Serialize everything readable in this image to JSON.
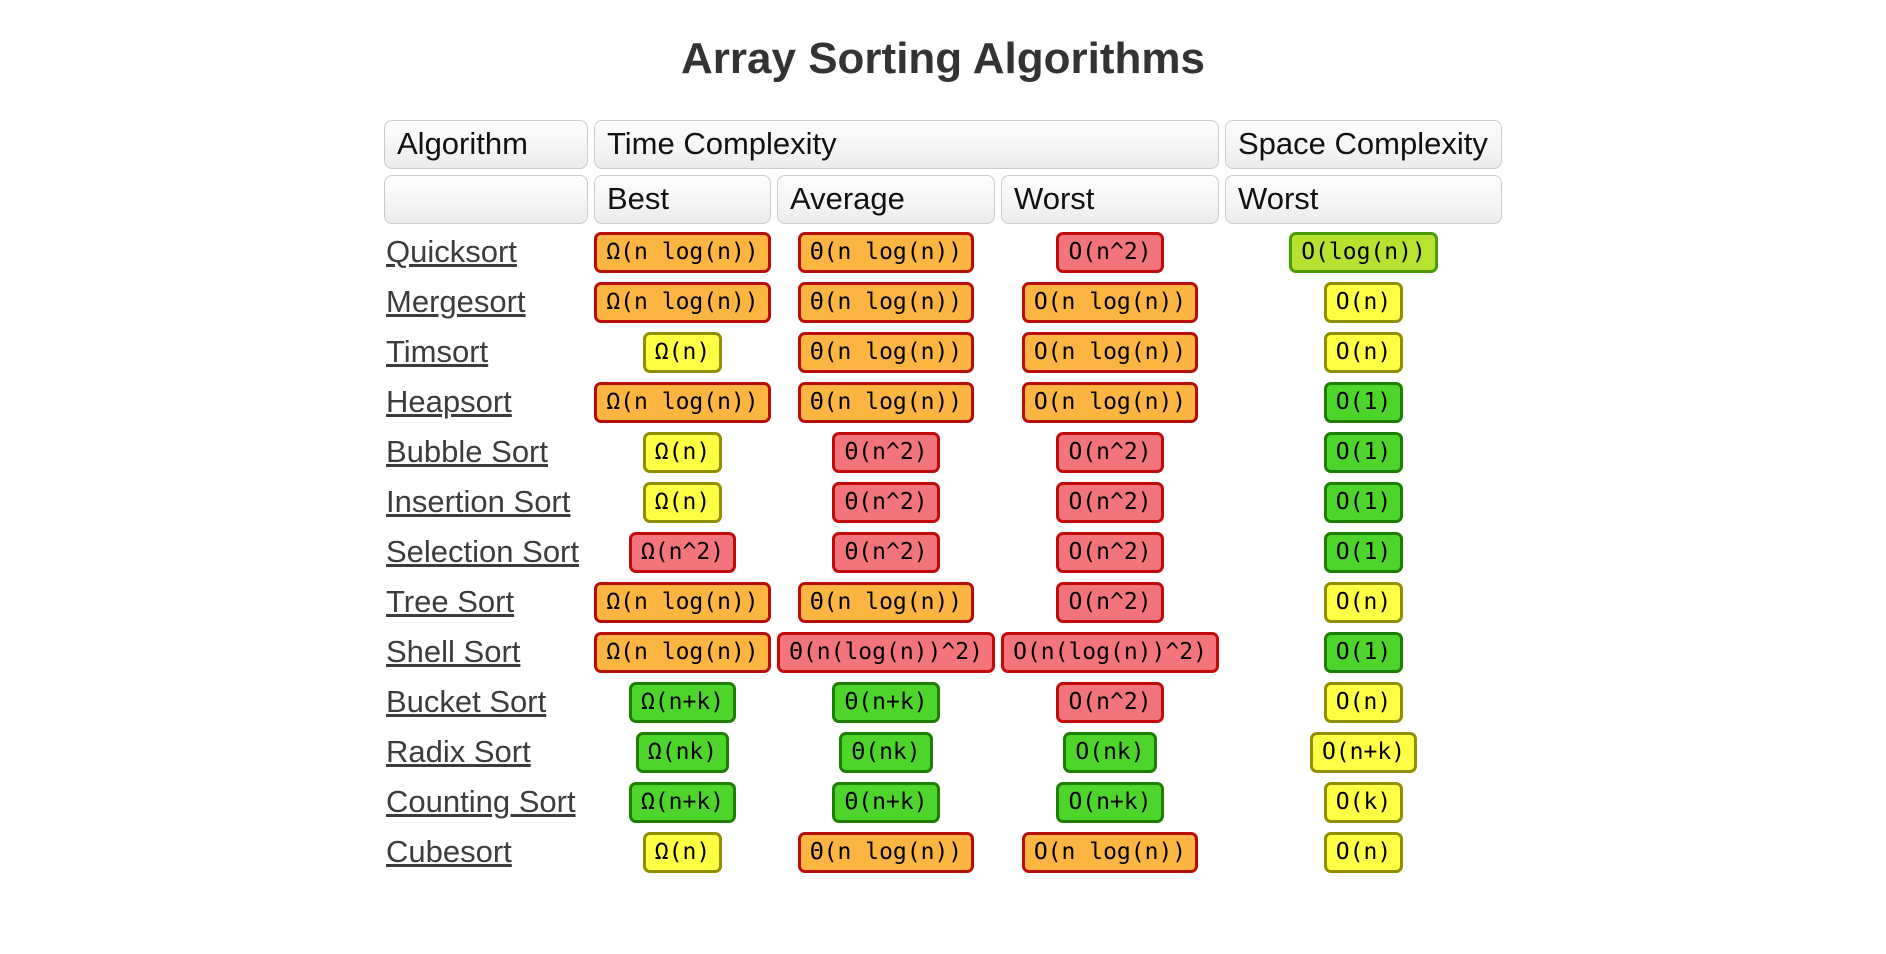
{
  "page": {
    "title": "Array Sorting Algorithms"
  },
  "table": {
    "headers": {
      "algorithm": "Algorithm",
      "time_complexity": "Time Complexity",
      "space_complexity": "Space Complexity",
      "sub": {
        "best": "Best",
        "average": "Average",
        "worst": "Worst",
        "space_worst": "Worst"
      }
    },
    "rows": [
      {
        "name": "Quicksort",
        "best": {
          "text": "Ω(n log(n))",
          "tone": "orange"
        },
        "average": {
          "text": "Θ(n log(n))",
          "tone": "orange"
        },
        "worst": {
          "text": "O(n^2)",
          "tone": "red"
        },
        "space": {
          "text": "O(log(n))",
          "tone": "yellowgreen"
        }
      },
      {
        "name": "Mergesort",
        "best": {
          "text": "Ω(n log(n))",
          "tone": "orange"
        },
        "average": {
          "text": "Θ(n log(n))",
          "tone": "orange"
        },
        "worst": {
          "text": "O(n log(n))",
          "tone": "orange"
        },
        "space": {
          "text": "O(n)",
          "tone": "yellow"
        }
      },
      {
        "name": "Timsort",
        "best": {
          "text": "Ω(n)",
          "tone": "yellow"
        },
        "average": {
          "text": "Θ(n log(n))",
          "tone": "orange"
        },
        "worst": {
          "text": "O(n log(n))",
          "tone": "orange"
        },
        "space": {
          "text": "O(n)",
          "tone": "yellow"
        }
      },
      {
        "name": "Heapsort",
        "best": {
          "text": "Ω(n log(n))",
          "tone": "orange"
        },
        "average": {
          "text": "Θ(n log(n))",
          "tone": "orange"
        },
        "worst": {
          "text": "O(n log(n))",
          "tone": "orange"
        },
        "space": {
          "text": "O(1)",
          "tone": "green"
        }
      },
      {
        "name": "Bubble Sort",
        "best": {
          "text": "Ω(n)",
          "tone": "yellow"
        },
        "average": {
          "text": "Θ(n^2)",
          "tone": "red"
        },
        "worst": {
          "text": "O(n^2)",
          "tone": "red"
        },
        "space": {
          "text": "O(1)",
          "tone": "green"
        }
      },
      {
        "name": "Insertion Sort",
        "best": {
          "text": "Ω(n)",
          "tone": "yellow"
        },
        "average": {
          "text": "Θ(n^2)",
          "tone": "red"
        },
        "worst": {
          "text": "O(n^2)",
          "tone": "red"
        },
        "space": {
          "text": "O(1)",
          "tone": "green"
        }
      },
      {
        "name": "Selection Sort",
        "best": {
          "text": "Ω(n^2)",
          "tone": "red"
        },
        "average": {
          "text": "Θ(n^2)",
          "tone": "red"
        },
        "worst": {
          "text": "O(n^2)",
          "tone": "red"
        },
        "space": {
          "text": "O(1)",
          "tone": "green"
        }
      },
      {
        "name": "Tree Sort",
        "best": {
          "text": "Ω(n log(n))",
          "tone": "orange"
        },
        "average": {
          "text": "Θ(n log(n))",
          "tone": "orange"
        },
        "worst": {
          "text": "O(n^2)",
          "tone": "red"
        },
        "space": {
          "text": "O(n)",
          "tone": "yellow"
        }
      },
      {
        "name": "Shell Sort",
        "best": {
          "text": "Ω(n log(n))",
          "tone": "orange"
        },
        "average": {
          "text": "Θ(n(log(n))^2)",
          "tone": "red"
        },
        "worst": {
          "text": "O(n(log(n))^2)",
          "tone": "red"
        },
        "space": {
          "text": "O(1)",
          "tone": "green"
        }
      },
      {
        "name": "Bucket Sort",
        "best": {
          "text": "Ω(n+k)",
          "tone": "green"
        },
        "average": {
          "text": "Θ(n+k)",
          "tone": "green"
        },
        "worst": {
          "text": "O(n^2)",
          "tone": "red"
        },
        "space": {
          "text": "O(n)",
          "tone": "yellow"
        }
      },
      {
        "name": "Radix Sort",
        "best": {
          "text": "Ω(nk)",
          "tone": "green"
        },
        "average": {
          "text": "Θ(nk)",
          "tone": "green"
        },
        "worst": {
          "text": "O(nk)",
          "tone": "green"
        },
        "space": {
          "text": "O(n+k)",
          "tone": "yellow"
        }
      },
      {
        "name": "Counting Sort",
        "best": {
          "text": "Ω(n+k)",
          "tone": "green"
        },
        "average": {
          "text": "Θ(n+k)",
          "tone": "green"
        },
        "worst": {
          "text": "O(n+k)",
          "tone": "green"
        },
        "space": {
          "text": "O(k)",
          "tone": "yellow"
        }
      },
      {
        "name": "Cubesort",
        "best": {
          "text": "Ω(n)",
          "tone": "yellow"
        },
        "average": {
          "text": "Θ(n log(n))",
          "tone": "orange"
        },
        "worst": {
          "text": "O(n log(n))",
          "tone": "orange"
        },
        "space": {
          "text": "O(n)",
          "tone": "yellow"
        }
      }
    ]
  },
  "colors": {
    "badges": {
      "orange": {
        "bg": "#FBB540",
        "border": "#B80E07"
      },
      "red": {
        "bg": "#F4747C",
        "border": "#C20A0A"
      },
      "yellow": {
        "bg": "#FFFF43",
        "border": "#8F8F00"
      },
      "green": {
        "bg": "#4DD52B",
        "border": "#1D7E00"
      },
      "yellowgreen": {
        "bg": "#B5E32F",
        "border": "#4C9A06"
      }
    },
    "link": "#3C3C3C",
    "title": "#333333"
  }
}
